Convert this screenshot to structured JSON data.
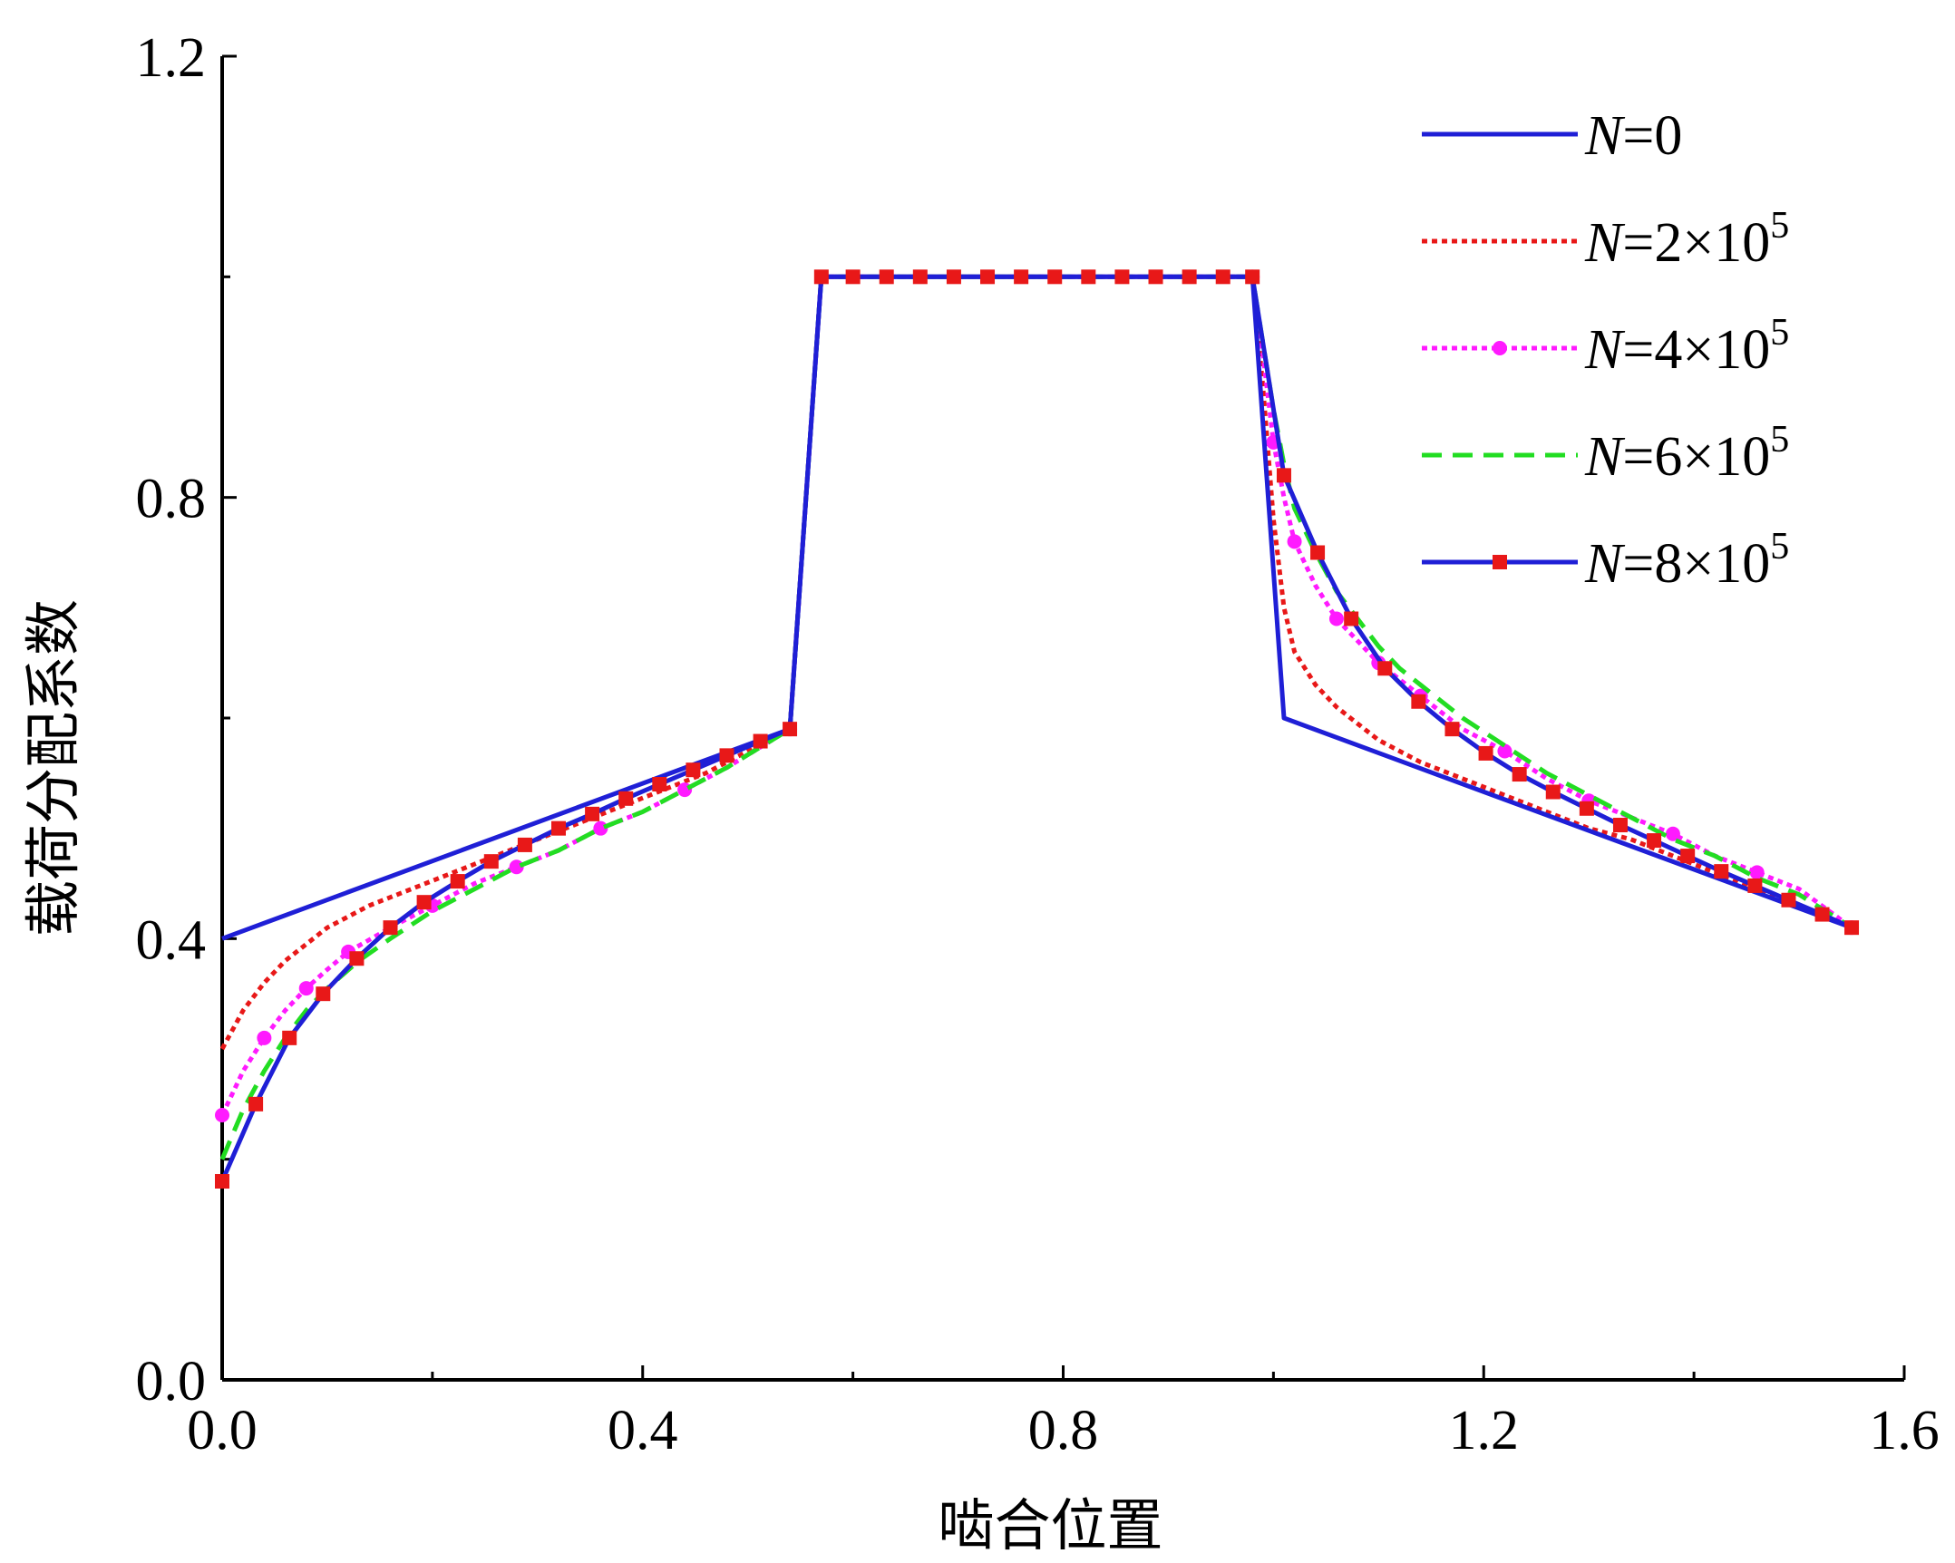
{
  "chart_data": {
    "type": "line",
    "title": "",
    "xlabel": "啮合位置",
    "ylabel": "载荷分配系数",
    "xlim": [
      0,
      1.6
    ],
    "ylim": [
      0,
      1.2
    ],
    "xticks": [
      "0.0",
      "0.4",
      "0.8",
      "1.2",
      "1.6"
    ],
    "yticks": [
      "0.0",
      "0.4",
      "0.8",
      "1.2"
    ],
    "grid": false,
    "legend_position": "top-right",
    "series": [
      {
        "name": "N=0",
        "legend": {
          "italic": "N",
          "text": "=0",
          "sup": ""
        },
        "color": "#1f1fd6",
        "dash": "solid",
        "marker": "none",
        "x": [
          0,
          0.54,
          0.57,
          0.98,
          1.01,
          1.55
        ],
        "y": [
          0.4,
          0.59,
          1.0,
          1.0,
          0.6,
          0.41
        ]
      },
      {
        "name": "N=2×10^5",
        "legend": {
          "italic": "N",
          "text": "=2×10",
          "sup": "5"
        },
        "color": "#e81818",
        "dash": "dotted",
        "marker": "none",
        "x": [
          0,
          0.02,
          0.04,
          0.06,
          0.08,
          0.1,
          0.14,
          0.18,
          0.22,
          0.26,
          0.3,
          0.34,
          0.38,
          0.42,
          0.46,
          0.5,
          0.54,
          0.57,
          0.98,
          0.99,
          1.0,
          1.01,
          1.02,
          1.04,
          1.06,
          1.08,
          1.1,
          1.14,
          1.18,
          1.22,
          1.26,
          1.3,
          1.34,
          1.38,
          1.42,
          1.46,
          1.5,
          1.55
        ],
        "y": [
          0.3,
          0.335,
          0.36,
          0.38,
          0.395,
          0.41,
          0.43,
          0.445,
          0.46,
          0.475,
          0.49,
          0.505,
          0.52,
          0.535,
          0.55,
          0.57,
          0.59,
          1.0,
          1.0,
          0.9,
          0.78,
          0.7,
          0.66,
          0.63,
          0.61,
          0.595,
          0.58,
          0.56,
          0.545,
          0.53,
          0.515,
          0.5,
          0.49,
          0.475,
          0.46,
          0.445,
          0.43,
          0.41
        ]
      },
      {
        "name": "N=4×10^5",
        "legend": {
          "italic": "N",
          "text": "=4×10",
          "sup": "5"
        },
        "color": "#ff1aff",
        "dash": "dotted",
        "marker": "circle",
        "x": [
          0,
          0.02,
          0.04,
          0.06,
          0.08,
          0.1,
          0.12,
          0.16,
          0.2,
          0.24,
          0.28,
          0.32,
          0.36,
          0.4,
          0.44,
          0.48,
          0.54,
          0.57,
          0.98,
          0.99,
          1.0,
          1.01,
          1.02,
          1.04,
          1.06,
          1.08,
          1.1,
          1.12,
          1.14,
          1.18,
          1.22,
          1.26,
          1.3,
          1.34,
          1.38,
          1.42,
          1.46,
          1.5,
          1.55
        ],
        "y": [
          0.24,
          0.28,
          0.31,
          0.335,
          0.355,
          0.372,
          0.388,
          0.41,
          0.43,
          0.45,
          0.465,
          0.48,
          0.5,
          0.515,
          0.535,
          0.555,
          0.59,
          1.0,
          1.0,
          0.93,
          0.85,
          0.8,
          0.76,
          0.72,
          0.69,
          0.67,
          0.65,
          0.635,
          0.62,
          0.59,
          0.57,
          0.545,
          0.525,
          0.51,
          0.495,
          0.475,
          0.46,
          0.445,
          0.41
        ]
      },
      {
        "name": "N=6×10^5",
        "legend": {
          "italic": "N",
          "text": "=6×10",
          "sup": "5"
        },
        "color": "#22dd22",
        "dash": "dashed",
        "marker": "none",
        "x": [
          0,
          0.02,
          0.04,
          0.06,
          0.08,
          0.1,
          0.13,
          0.16,
          0.2,
          0.24,
          0.28,
          0.32,
          0.36,
          0.4,
          0.44,
          0.48,
          0.54,
          0.57,
          0.98,
          0.99,
          1.0,
          1.01,
          1.02,
          1.04,
          1.06,
          1.08,
          1.1,
          1.12,
          1.14,
          1.18,
          1.22,
          1.26,
          1.3,
          1.34,
          1.38,
          1.42,
          1.46,
          1.5,
          1.55
        ],
        "y": [
          0.2,
          0.245,
          0.28,
          0.31,
          0.335,
          0.355,
          0.38,
          0.4,
          0.425,
          0.445,
          0.465,
          0.48,
          0.5,
          0.515,
          0.535,
          0.555,
          0.59,
          1.0,
          1.0,
          0.94,
          0.88,
          0.83,
          0.79,
          0.75,
          0.715,
          0.69,
          0.665,
          0.645,
          0.63,
          0.6,
          0.575,
          0.55,
          0.53,
          0.51,
          0.49,
          0.475,
          0.455,
          0.44,
          0.41
        ]
      },
      {
        "name": "N=8×10^5",
        "legend": {
          "italic": "N",
          "text": "=8×10",
          "sup": "5"
        },
        "color": "#1f1fd6",
        "dash": "solid",
        "marker": "square",
        "marker_color": "#e81818",
        "x": [
          0,
          0.032,
          0.064,
          0.096,
          0.128,
          0.16,
          0.192,
          0.224,
          0.256,
          0.288,
          0.32,
          0.352,
          0.384,
          0.416,
          0.448,
          0.48,
          0.512,
          0.54,
          0.57,
          0.6,
          0.632,
          0.664,
          0.696,
          0.728,
          0.76,
          0.792,
          0.824,
          0.856,
          0.888,
          0.92,
          0.952,
          0.98,
          1.01,
          1.042,
          1.074,
          1.106,
          1.138,
          1.17,
          1.202,
          1.234,
          1.266,
          1.298,
          1.33,
          1.362,
          1.394,
          1.426,
          1.458,
          1.49,
          1.522,
          1.55
        ],
        "y": [
          0.18,
          0.25,
          0.31,
          0.35,
          0.382,
          0.41,
          0.433,
          0.452,
          0.47,
          0.485,
          0.5,
          0.513,
          0.527,
          0.54,
          0.553,
          0.566,
          0.579,
          0.59,
          1.0,
          1.0,
          1.0,
          1.0,
          1.0,
          1.0,
          1.0,
          1.0,
          1.0,
          1.0,
          1.0,
          1.0,
          1.0,
          1.0,
          0.82,
          0.75,
          0.69,
          0.645,
          0.615,
          0.59,
          0.568,
          0.549,
          0.533,
          0.518,
          0.503,
          0.489,
          0.475,
          0.461,
          0.448,
          0.435,
          0.422,
          0.41
        ]
      }
    ]
  }
}
